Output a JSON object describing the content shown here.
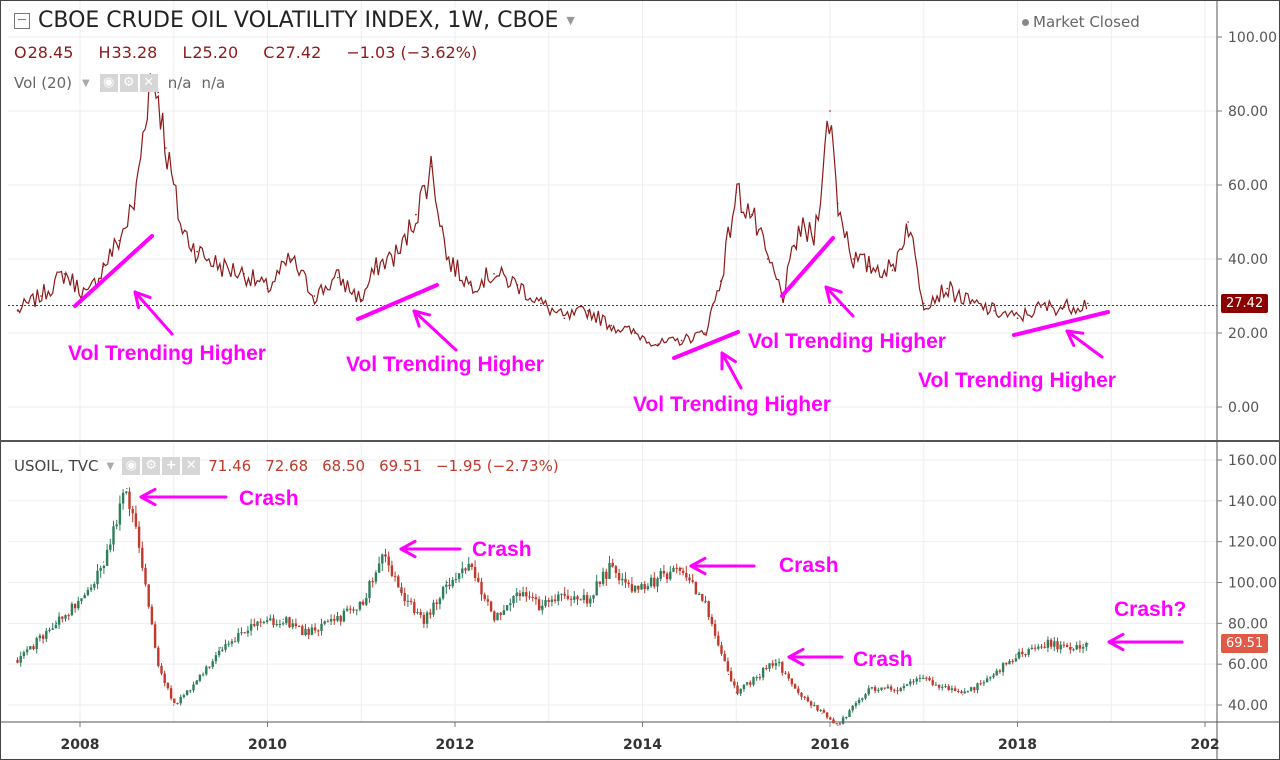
{
  "header": {
    "title": "CBOE CRUDE OIL VOLATILITY INDEX, 1W, CBOE",
    "market_status": "Market Closed",
    "ohlc": [
      {
        "k": "O",
        "v": "28.45"
      },
      {
        "k": "H",
        "v": "33.28"
      },
      {
        "k": "L",
        "v": "25.20"
      },
      {
        "k": "C",
        "v": "27.42"
      }
    ],
    "change": "−1.03 (−3.62%)",
    "vol_label": "Vol (20)",
    "vol_values": [
      "n/a",
      "n/a"
    ]
  },
  "usoil": {
    "label": "USOIL, TVC",
    "values": [
      "71.46",
      "72.68",
      "68.50",
      "69.51"
    ],
    "change": "−1.95 (−2.73%)"
  },
  "colors": {
    "vix_line": "#8b1a1a",
    "up_candle": "#2e7d5b",
    "down_candle": "#c0392b",
    "annotation": "#ff00ff",
    "last_vix_tag": "#8b0000",
    "last_usoil_tag": "#e05a47"
  },
  "chart_data": [
    {
      "type": "line",
      "title": "CBOE CRUDE OIL VOLATILITY INDEX, 1W, CBOE",
      "series": [
        {
          "name": "CBOE CRUDE OIL VOLATILITY INDEX",
          "x": [
            "2007-05",
            "2007-08",
            "2007-11",
            "2008-02",
            "2008-04",
            "2008-06",
            "2008-08",
            "2008-10",
            "2008-11",
            "2008-12",
            "2009-02",
            "2009-04",
            "2009-07",
            "2009-10",
            "2010-01",
            "2010-04",
            "2010-07",
            "2010-10",
            "2011-01",
            "2011-03",
            "2011-06",
            "2011-08",
            "2011-10",
            "2011-12",
            "2012-03",
            "2012-06",
            "2012-09",
            "2012-12",
            "2013-03",
            "2013-06",
            "2013-09",
            "2013-12",
            "2014-03",
            "2014-06",
            "2014-09",
            "2014-11",
            "2015-01",
            "2015-03",
            "2015-05",
            "2015-07",
            "2015-09",
            "2015-11",
            "2016-01",
            "2016-02",
            "2016-04",
            "2016-06",
            "2016-09",
            "2016-11",
            "2017-01",
            "2017-04",
            "2017-07",
            "2017-10",
            "2018-01",
            "2018-04",
            "2018-07",
            "2018-10"
          ],
          "values": [
            26,
            30,
            36,
            30,
            38,
            45,
            55,
            90,
            85,
            70,
            48,
            42,
            38,
            36,
            32,
            40,
            30,
            35,
            29,
            38,
            42,
            52,
            65,
            40,
            33,
            36,
            33,
            28,
            24,
            26,
            22,
            20,
            17,
            18,
            20,
            34,
            58,
            52,
            40,
            30,
            48,
            46,
            80,
            55,
            40,
            38,
            37,
            50,
            28,
            32,
            28,
            26,
            24,
            27,
            27,
            28
          ]
        }
      ],
      "ylim": [
        -6,
        105
      ],
      "y_ticks": [
        "100.00",
        "80.00",
        "60.00",
        "40.00",
        "20.00",
        "0.00"
      ],
      "last_value": "27.42",
      "grid": true
    },
    {
      "type": "line",
      "title": "USOIL, TVC",
      "series": [
        {
          "name": "USOIL",
          "x": [
            "2007-05",
            "2007-10",
            "2008-02",
            "2008-04",
            "2008-07",
            "2008-09",
            "2008-11",
            "2009-01",
            "2009-04",
            "2009-07",
            "2009-11",
            "2010-03",
            "2010-06",
            "2010-10",
            "2011-01",
            "2011-04",
            "2011-06",
            "2011-09",
            "2011-12",
            "2012-03",
            "2012-06",
            "2012-09",
            "2012-12",
            "2013-03",
            "2013-06",
            "2013-09",
            "2013-12",
            "2014-03",
            "2014-06",
            "2014-09",
            "2014-12",
            "2015-01",
            "2015-04",
            "2015-06",
            "2015-09",
            "2015-12",
            "2016-02",
            "2016-06",
            "2016-10",
            "2017-01",
            "2017-06",
            "2017-10",
            "2018-01",
            "2018-05",
            "2018-08",
            "2018-10"
          ],
          "values": [
            62,
            80,
            95,
            110,
            146,
            110,
            60,
            40,
            52,
            68,
            78,
            82,
            75,
            82,
            90,
            113,
            96,
            80,
            100,
            108,
            83,
            95,
            88,
            95,
            92,
            108,
            96,
            102,
            107,
            90,
            55,
            46,
            55,
            62,
            45,
            36,
            30,
            48,
            48,
            53,
            45,
            55,
            65,
            70,
            68,
            70
          ]
        }
      ],
      "ylim": [
        30,
        163
      ],
      "y_ticks": [
        "160.00",
        "140.00",
        "120.00",
        "100.00",
        "80.00",
        "60.00",
        "40.00"
      ],
      "last_value": "69.51",
      "grid": true
    }
  ],
  "x_axis": {
    "ticks": [
      "2008",
      "2010",
      "2012",
      "2014",
      "2016",
      "2018",
      "202"
    ]
  },
  "annotations": {
    "vol": [
      "Vol Trending Higher",
      "Vol Trending Higher",
      "Vol Trending Higher",
      "Vol Trending Higher",
      "Vol Trending Higher"
    ],
    "crash": [
      "Crash",
      "Crash",
      "Crash",
      "Crash"
    ],
    "crash_q": "Crash?"
  }
}
